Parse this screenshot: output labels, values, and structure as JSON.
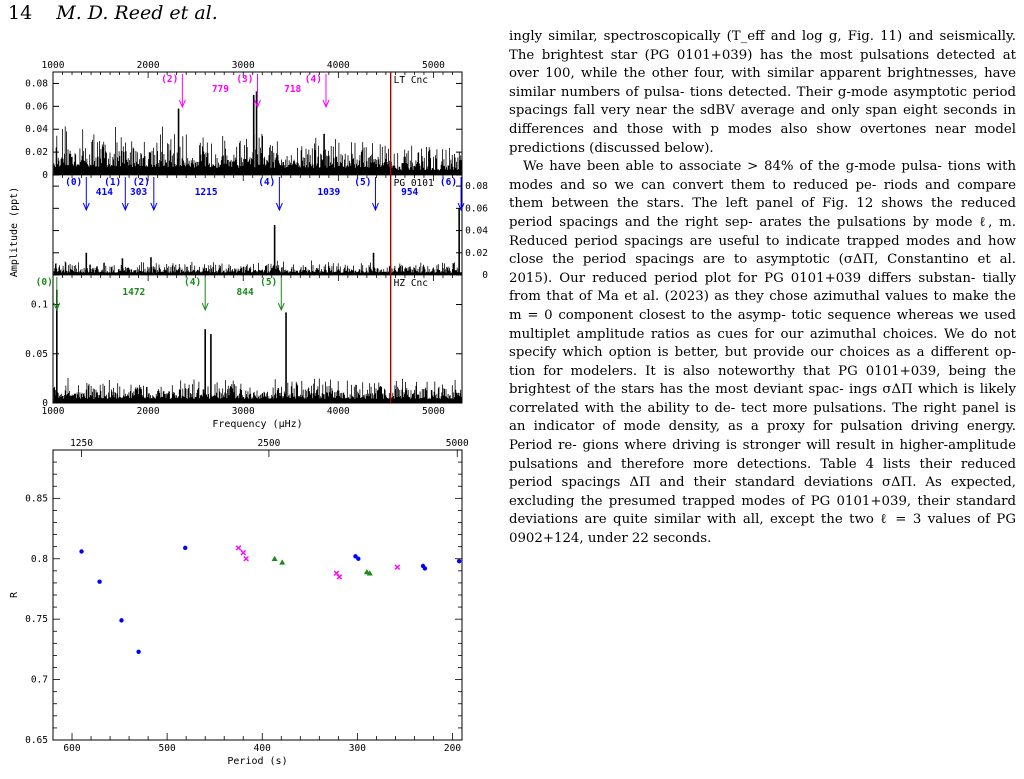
{
  "header": {
    "page_number": "14",
    "authors": "M. D. Reed et al."
  },
  "text": {
    "para1_lines": [
      "ingly similar, spectroscopically (T_eff and log g, Fig. 11) and",
      "seismically. The brightest star (PG 0101+039) has the most",
      "pulsations detected at over 100, while the other four, with",
      "similar apparent brightnesses, have similar numbers of pulsa-",
      "tions detected. Their g-mode asymptotic period spacings fall",
      "very near the sdBV average and only span eight seconds in",
      "differences and those with p modes also show overtones near",
      "model predictions (discussed below)."
    ],
    "para2_lines": [
      "We have been able to associate > 84% of the g-mode pulsa-",
      "tions with modes and so we can convert them to reduced pe-",
      "riods and compare them between the stars. The left panel of",
      "Fig. 12 shows the reduced period spacings and the right sep-",
      "arates the pulsations by mode ℓ, m. Reduced period spacings",
      "are useful to indicate trapped modes and how close the period",
      "spacings are to asymptotic (σΔΠ, Constantino et al. 2015).",
      "Our reduced period plot for PG 0101+039 differs substan-",
      "tially from that of Ma et al. (2023) as they chose azimuthal",
      "values to make the m = 0 component closest to the asymp-",
      "totic sequence whereas we used multiplet amplitude ratios",
      "as cues for our azimuthal choices. We do not specify which",
      "option is better, but provide our choices as a different op-",
      "tion for modelers. It is also noteworthy that PG 0101+039,",
      "being the brightest of the stars has the most deviant spac-",
      "ings σΔΠ which is likely correlated with the ability to de-",
      "tect more pulsations. The right panel is an indicator of mode",
      "density, as a proxy for pulsation driving energy. Period re-",
      "gions where driving is stronger will result in higher-amplitude",
      "pulsations and therefore more detections. Table 4 lists their",
      "reduced period spacings ΔΠ and their standard deviations",
      "σΔΠ. As expected, excluding the presumed trapped modes",
      "of PG 0101+039, their standard deviations are quite similar",
      "with all, except the two ℓ = 3 values of PG 0902+124, under",
      "22 seconds."
    ]
  },
  "colors": {
    "magenta": "#ff00ff",
    "blue": "#0000ff",
    "green": "#1a8a1a",
    "red_line": "#aa0000",
    "link": "#2222bb"
  },
  "chart_data": [
    {
      "type": "line",
      "description_free": true,
      "panels": [
        "LT Cnc",
        "PG 0101",
        "HZ Cnc"
      ],
      "xlabel": "Frequency (μHz)",
      "ylabel": "Amplitude (ppt)",
      "xlim": [
        1000,
        5300
      ],
      "x_ticks": [
        "1000",
        "2000",
        "3000",
        "4000",
        "5000"
      ],
      "nyquist_line_x": 4550,
      "lt_cnc": {
        "label": "LT Cnc",
        "ylim": [
          0,
          0.09
        ],
        "y_ticks": [
          "0",
          "0.02",
          "0.04",
          "0.06",
          "0.08"
        ],
        "peaks": [
          [
            2320,
            0.058
          ],
          [
            3110,
            0.07
          ],
          [
            3140,
            0.073
          ],
          [
            3850,
            0.036
          ]
        ],
        "mode_labels": [
          "(2)",
          "(3)",
          "(4)"
        ],
        "mode_x": [
          2360,
          3150,
          3870
        ],
        "spacings": [
          "779",
          "718"
        ],
        "spacing_x": [
          2760,
          3520
        ]
      },
      "pg0101": {
        "label": "PG 0101",
        "ylim": [
          0,
          0.09
        ],
        "y_ticks": [
          "0",
          "0.02",
          "0.04",
          "0.06",
          "0.08"
        ],
        "peaks": [
          [
            1350,
            0.02
          ],
          [
            1730,
            0.015
          ],
          [
            2030,
            0.016
          ],
          [
            3330,
            0.045
          ],
          [
            4370,
            0.02
          ],
          [
            5270,
            0.06
          ]
        ],
        "mode_labels": [
          "(0)",
          "(1)",
          "(2)",
          "(4)",
          "(5)",
          "(6)"
        ],
        "mode_x": [
          1350,
          1760,
          2060,
          3380,
          4390,
          5290
        ],
        "spacings": [
          "414",
          "303",
          "1215",
          "1039",
          "954"
        ],
        "spacing_x": [
          1540,
          1900,
          2610,
          3900,
          4750
        ]
      },
      "hz_cnc": {
        "label": "HZ Cnc",
        "ylim": [
          0,
          0.13
        ],
        "y_ticks": [
          "0",
          "0.05",
          "0.1"
        ],
        "peaks": [
          [
            1040,
            0.115
          ],
          [
            2600,
            0.075
          ],
          [
            2660,
            0.07
          ],
          [
            3450,
            0.092
          ]
        ],
        "mode_labels": [
          "(0)",
          "(4)",
          "(5)"
        ],
        "mode_x": [
          1040,
          2600,
          3400
        ],
        "spacings": [
          "1472",
          "844"
        ],
        "spacing_x": [
          1850,
          3020
        ]
      }
    },
    {
      "type": "scatter",
      "xlabel": "Period (s)",
      "ylabel": "R",
      "xlim": [
        620,
        190
      ],
      "ylim": [
        0.65,
        0.89
      ],
      "x_ticks": [
        "600",
        "500",
        "400",
        "300",
        "200"
      ],
      "y_ticks": [
        "0.65",
        "0.7",
        "0.75",
        "0.8",
        "0.85"
      ],
      "top_ticks": [
        "1250",
        "2500",
        "5000"
      ],
      "top_tick_periods": [
        590,
        393,
        195
      ],
      "series": [
        {
          "color": "blue",
          "marker": "dot",
          "points": [
            [
              590,
              0.806
            ],
            [
              571,
              0.781
            ],
            [
              548,
              0.749
            ],
            [
              530,
              0.723
            ],
            [
              481,
              0.809
            ],
            [
              302,
              0.802
            ],
            [
              299,
              0.8
            ],
            [
              231,
              0.794
            ],
            [
              229,
              0.792
            ],
            [
              193,
              0.798
            ]
          ]
        },
        {
          "color": "magenta",
          "marker": "cross",
          "points": [
            [
              425,
              0.809
            ],
            [
              420,
              0.805
            ],
            [
              417,
              0.8
            ],
            [
              322,
              0.788
            ],
            [
              319,
              0.785
            ],
            [
              258,
              0.793
            ]
          ]
        },
        {
          "color": "green",
          "marker": "triangle",
          "points": [
            [
              387,
              0.8
            ],
            [
              379,
              0.797
            ],
            [
              290,
              0.789
            ],
            [
              287,
              0.788
            ]
          ]
        }
      ]
    }
  ]
}
